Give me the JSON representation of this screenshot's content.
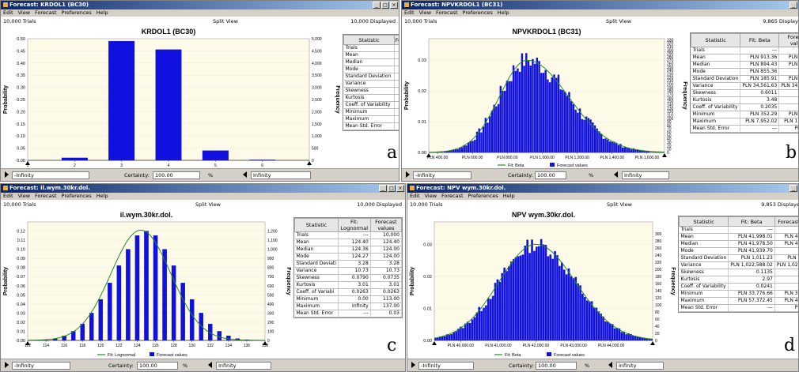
{
  "panels": [
    {
      "id": "a",
      "title": "Forecast: KRDOL1 (BC30)",
      "menu": [
        "Edit",
        "View",
        "Forecast",
        "Preferences",
        "Help"
      ],
      "trials": "10,000 Trials",
      "view": "Split View",
      "displayed": "10,000 Displayed",
      "letter": "a",
      "certainty_label": "Certainty:",
      "certainty_value": "100.00",
      "percent": "%",
      "left_bound": "-Infinity",
      "right_bound": "Infinity",
      "stats_headers": [
        "Statistic",
        "Forecast values"
      ],
      "stats": [
        [
          "Trials",
          "10,000"
        ],
        [
          "Mean",
          "3.52"
        ],
        [
          "Median",
          "3.00"
        ],
        [
          "Mode",
          "3.00"
        ],
        [
          "Standard Deviation",
          "0.60"
        ],
        [
          "Variance",
          "0.36"
        ],
        [
          "Skewness",
          "0.3807"
        ],
        [
          "Kurtosis",
          "2.80"
        ],
        [
          "Coeff. of Variability",
          "0.1700"
        ],
        [
          "Minimum",
          "2.00"
        ],
        [
          "Maximum",
          "6.00"
        ],
        [
          "Mean Std. Error",
          "0.01"
        ]
      ],
      "chart_data": {
        "type": "bar",
        "title": "KRDOL1 (BC30)",
        "ylabel": "Probability",
        "y2label": "Frequency",
        "categories": [
          "2",
          "3",
          "4",
          "5",
          "6"
        ],
        "x_ticks": [
          "1",
          "2",
          "3",
          "4",
          "5",
          "6",
          "7"
        ],
        "x_range": [
          1,
          7
        ],
        "values": [
          0.01,
          0.49,
          0.455,
          0.04,
          0.002
        ],
        "ylim": [
          0,
          0.5
        ],
        "y_ticks": [
          "0.00",
          "0.05",
          "0.10",
          "0.15",
          "0.20",
          "0.25",
          "0.30",
          "0.35",
          "0.40",
          "0.45",
          "0.50"
        ],
        "y2_ticks": [
          "0",
          "500",
          "1,000",
          "1,500",
          "2,000",
          "2,500",
          "3,000",
          "3,500",
          "4,000",
          "4,500",
          "5,000"
        ],
        "legend": []
      }
    },
    {
      "id": "b",
      "title": "Forecast: NPVKRDOL1 (BC31)",
      "menu": [
        "Edit",
        "View",
        "Forecast",
        "Preferences",
        "Help"
      ],
      "trials": "10,000 Trials",
      "view": "Split View",
      "displayed": "9,865 Displayed",
      "letter": "b",
      "certainty_label": "Certainty:",
      "certainty_value": "100.00",
      "percent": "%",
      "left_bound": "-Infinity",
      "right_bound": "Infinity",
      "stats_headers": [
        "Statistic",
        "Fit: Beta",
        "Forecast values"
      ],
      "stats": [
        [
          "Trials",
          "---",
          "10,000"
        ],
        [
          "Mean",
          "PLN 913.36",
          "PLN 913.36"
        ],
        [
          "Median",
          "PLN 894.43",
          "PLN 891.53"
        ],
        [
          "Mode",
          "PLN 855.36",
          "---"
        ],
        [
          "Standard Deviation",
          "PLN 185.91",
          "PLN 185.94"
        ],
        [
          "Variance",
          "PLN 34,561.63",
          "PLN 34,564.47"
        ],
        [
          "Skewness",
          "0.6011",
          "0.6011"
        ],
        [
          "Kurtosis",
          "3.48",
          "3.48"
        ],
        [
          "Coeff. of Variability",
          "0.2035",
          "0.2036"
        ],
        [
          "Minimum",
          "PLN 352.29",
          "PLN 395.29"
        ],
        [
          "Maximum",
          "PLN 7,952.02",
          "PLN 1,824.68"
        ],
        [
          "Mean Std. Error",
          "---",
          "PLN 1.86"
        ]
      ],
      "chart_data": {
        "type": "bar",
        "title": "NPVKRDOL1 (BC31)",
        "ylabel": "Probability",
        "y2label": "Frequency",
        "x_range": [
          350,
          1700
        ],
        "x_ticks": [
          "PLN 400.00",
          "PLN 600.00",
          "PLN 800.00",
          "PLN 1,000.00",
          "PLN 1,200.00",
          "PLN 1,400.00",
          "PLN 1,600.00"
        ],
        "x_tick_values": [
          400,
          600,
          800,
          1000,
          1200,
          1400,
          1600
        ],
        "dist": {
          "mean": 913,
          "sd": 186,
          "skew": 0.6,
          "peak": 0.03,
          "noise": 0.25
        },
        "ylim": [
          0,
          0.037
        ],
        "y_ticks": [
          "0.00",
          "0.01",
          "0.02",
          "0.03"
        ],
        "y_tick_values": [
          0,
          0.01,
          0.02,
          0.03
        ],
        "y2_ticks": [
          "0",
          "10",
          "20",
          "30",
          "40",
          "50",
          "60",
          "70",
          "80",
          "90",
          "100",
          "110",
          "120",
          "130",
          "140",
          "150",
          "160",
          "170",
          "180",
          "190",
          "200",
          "210",
          "220",
          "230",
          "240",
          "250",
          "260",
          "270",
          "280",
          "290",
          "300",
          "310",
          "320",
          "330"
        ],
        "legend": [
          "Fit: Beta",
          "Forecast values"
        ],
        "fit_color": "#228b22",
        "bar_color": "#1010e0"
      }
    },
    {
      "id": "c",
      "title": "Forecast: il.wym.30kr.dol.",
      "menu": [
        "Edit",
        "View",
        "Forecast",
        "Preferences",
        "Help"
      ],
      "trials": "10,000 Trials",
      "view": "Split View",
      "displayed": "10,000 Displayed",
      "letter": "c",
      "certainty_label": "Certainty:",
      "certainty_value": "100.00",
      "percent": "%",
      "left_bound": "-Infinity",
      "right_bound": "Infinity",
      "stats_headers": [
        "Statistic",
        "Fit: Lognormal",
        "Forecast values"
      ],
      "stats": [
        [
          "Trials",
          "---",
          "10,000"
        ],
        [
          "Mean",
          "124.40",
          "124.40"
        ],
        [
          "Median",
          "124.36",
          "124.00"
        ],
        [
          "Mode",
          "124.27",
          "124.00"
        ],
        [
          "Standard Deviati",
          "3.28",
          "3.28"
        ],
        [
          "Variance",
          "10.73",
          "10.73"
        ],
        [
          "Skewness",
          "0.0790",
          "0.0735"
        ],
        [
          "Kurtosis",
          "3.01",
          "3.01"
        ],
        [
          "Coeff. of Variabi",
          "0.0263",
          "0.0263"
        ],
        [
          "Minimum",
          "0.00",
          "113.00"
        ],
        [
          "Maximum",
          "Infinity",
          "137.00"
        ],
        [
          "Mean Std. Error",
          "---",
          "0.03"
        ]
      ],
      "chart_data": {
        "type": "bar",
        "title": "il.wym.30kr.dol.",
        "ylabel": "Probability",
        "y2label": "Frequency",
        "x_range": [
          112,
          138
        ],
        "x_ticks": [
          "112",
          "114",
          "116",
          "118",
          "120",
          "122",
          "124",
          "126",
          "128",
          "130",
          "132",
          "134",
          "136",
          "138"
        ],
        "categories": [
          113,
          114,
          115,
          116,
          117,
          118,
          119,
          120,
          121,
          122,
          123,
          124,
          125,
          126,
          127,
          128,
          129,
          130,
          131,
          132,
          133,
          134,
          135,
          136,
          137
        ],
        "values": [
          0.0002,
          0.0008,
          0.002,
          0.005,
          0.01,
          0.018,
          0.03,
          0.045,
          0.063,
          0.082,
          0.1,
          0.115,
          0.12,
          0.115,
          0.1,
          0.082,
          0.063,
          0.045,
          0.03,
          0.018,
          0.01,
          0.005,
          0.002,
          0.0008,
          0.0003
        ],
        "fit": {
          "mean": 124.4,
          "sd": 3.28,
          "peak": 0.121
        },
        "ylim": [
          0,
          0.13
        ],
        "y_ticks": [
          "0.00",
          "0.01",
          "0.02",
          "0.03",
          "0.04",
          "0.05",
          "0.06",
          "0.07",
          "0.08",
          "0.09",
          "0.10",
          "0.11",
          "0.12"
        ],
        "y_tick_values": [
          0,
          0.01,
          0.02,
          0.03,
          0.04,
          0.05,
          0.06,
          0.07,
          0.08,
          0.09,
          0.1,
          0.11,
          0.12
        ],
        "y2_ticks": [
          "0",
          "100",
          "200",
          "300",
          "400",
          "500",
          "600",
          "700",
          "800",
          "900",
          "1,000",
          "1,100",
          "1,200"
        ],
        "legend": [
          "Fit: Lognormal",
          "Forecast values"
        ],
        "fit_color": "#228b22",
        "bar_color": "#1010e0"
      }
    },
    {
      "id": "d",
      "title": "Forecast: NPV wym.30kr.dol.",
      "menu": [
        "Edit",
        "View",
        "Forecast",
        "Preferences",
        "Help"
      ],
      "trials": "10,000 Trials",
      "view": "Split View",
      "displayed": "9,853 Displayed",
      "letter": "d",
      "certainty_label": "Certainty:",
      "certainty_value": "100.00",
      "percent": "%",
      "left_bound": "-Infinity",
      "right_bound": "Infinity",
      "stats_headers": [
        "Statistic",
        "Fit: Beta",
        "Forecast values"
      ],
      "stats": [
        [
          "Trials",
          "---",
          "10,000"
        ],
        [
          "Mean",
          "PLN 41,998.01",
          "PLN 41,998.01"
        ],
        [
          "Median",
          "PLN 41,978.50",
          "PLN 41,973.61"
        ],
        [
          "Mode",
          "PLN 41,939.70",
          "---"
        ],
        [
          "Standard Deviation",
          "PLN 1,011.23",
          "PLN 1,011.23"
        ],
        [
          "Variance",
          "PLN 1,022,588.02",
          "PLN 1,022,690.21"
        ],
        [
          "Skewness",
          "0.1135",
          "0.1135"
        ],
        [
          "Kurtosis",
          "2.97",
          "2.97"
        ],
        [
          "Coeff. of Variability",
          "0.0241",
          "0.0241"
        ],
        [
          "Minimum",
          "PLN 33,776.66",
          "PLN 38,802.51"
        ],
        [
          "Maximum",
          "PLN 57,372.45",
          "PLN 46,197.70"
        ],
        [
          "Mean Std. Error",
          "---",
          "PLN 10.11"
        ]
      ],
      "chart_data": {
        "type": "bar",
        "title": "NPV wym.30kr.dol.",
        "ylabel": "Probability",
        "y2label": "Frequency",
        "x_range": [
          39300,
          45100
        ],
        "x_ticks": [
          "PLN 40,000.00",
          "PLN 41,000.00",
          "PLN 42,000.00",
          "PLN 43,000.00",
          "PLN 44,000.00"
        ],
        "x_tick_values": [
          40000,
          41000,
          42000,
          43000,
          44000
        ],
        "dist": {
          "mean": 41998,
          "sd": 1011,
          "skew": 0.1,
          "peak": 0.03,
          "noise": 0.18
        },
        "ylim": [
          0,
          0.037
        ],
        "y_ticks": [
          "0.00",
          "0.01",
          "0.02",
          "0.03"
        ],
        "y_tick_values": [
          0,
          0.01,
          0.02,
          0.03
        ],
        "y2_ticks": [
          "0",
          "20",
          "40",
          "60",
          "80",
          "100",
          "120",
          "140",
          "160",
          "180",
          "200",
          "220",
          "240",
          "260",
          "280",
          "300"
        ],
        "legend": [
          "Fit: Beta",
          "Forecast values"
        ],
        "fit_color": "#228b22",
        "bar_color": "#1010e0"
      }
    }
  ]
}
